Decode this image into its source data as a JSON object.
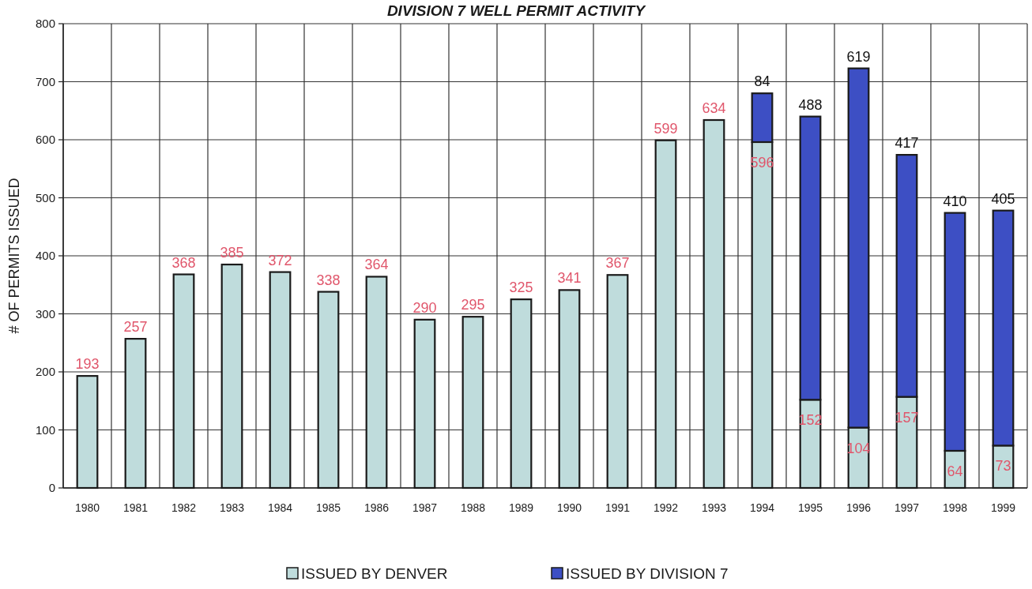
{
  "chart_data": {
    "type": "bar",
    "title": "DIVISION 7 WELL PERMIT ACTIVITY",
    "ylabel": "# OF PERMITS ISSUED",
    "categories": [
      "1980",
      "1981",
      "1982",
      "1983",
      "1984",
      "1985",
      "1986",
      "1987",
      "1988",
      "1989",
      "1990",
      "1991",
      "1992",
      "1993",
      "1994",
      "1995",
      "1996",
      "1997",
      "1998",
      "1999"
    ],
    "series": [
      {
        "name": "ISSUED BY DENVER",
        "color": "#bfdcdc",
        "values": [
          193,
          257,
          368,
          385,
          372,
          338,
          364,
          290,
          295,
          325,
          341,
          367,
          599,
          634,
          596,
          152,
          104,
          157,
          64,
          73
        ]
      },
      {
        "name": "ISSUED BY DIVISION 7",
        "color": "#3d4fc4",
        "values": [
          null,
          null,
          null,
          null,
          null,
          null,
          null,
          null,
          null,
          null,
          null,
          null,
          null,
          null,
          84,
          488,
          619,
          417,
          410,
          405
        ]
      }
    ],
    "stacked": true,
    "ylim": [
      0,
      800
    ],
    "yticks": [
      0,
      100,
      200,
      300,
      400,
      500,
      600,
      700,
      800
    ],
    "grid": true,
    "legend": "bottom",
    "data_labels": true
  }
}
